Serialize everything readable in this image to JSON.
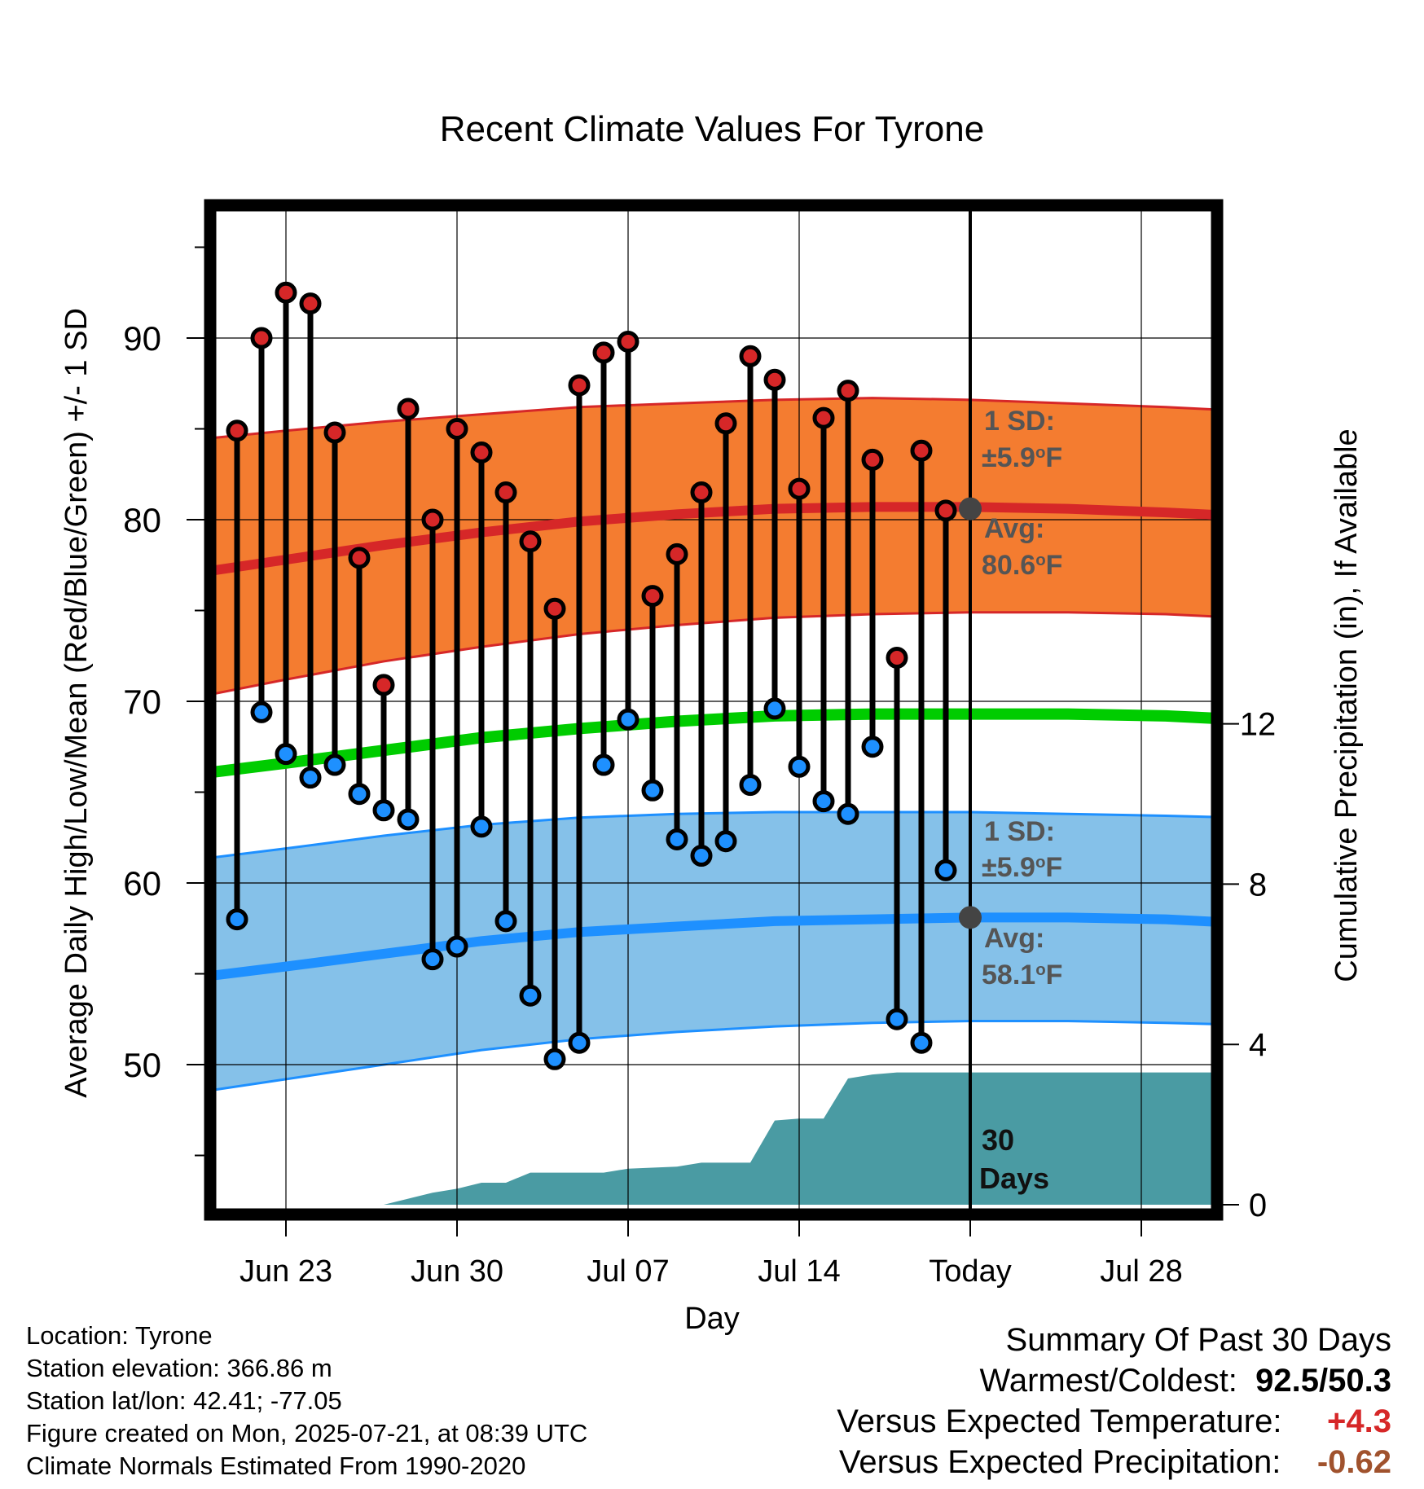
{
  "chart_data": {
    "type": "line",
    "title": "Recent Climate Values For Tyrone",
    "xlabel": "Day",
    "ylabel_left": "Average Daily High/Low/Mean (Red/Blue/Green) +/- 1 SD",
    "ylabel_right": "Cumulative Precipitation (in), If Available",
    "x_tick_labels": [
      "Jun 23",
      "Jun 30",
      "Jul 07",
      "Jul 14",
      "Today",
      "Jul 28"
    ],
    "y_left_ticks": [
      "50",
      "60",
      "70",
      "80",
      "90"
    ],
    "y_right_ticks": [
      "0",
      "4",
      "8",
      "12"
    ],
    "ylim": [
      42.7,
      97.5
    ],
    "y2lim": [
      0,
      24
    ],
    "days": [
      "Jun 21",
      "Jun 22",
      "Jun 23",
      "Jun 24",
      "Jun 25",
      "Jun 26",
      "Jun 27",
      "Jun 28",
      "Jun 29",
      "Jun 30",
      "Jul 01",
      "Jul 02",
      "Jul 03",
      "Jul 04",
      "Jul 05",
      "Jul 06",
      "Jul 07",
      "Jul 08",
      "Jul 09",
      "Jul 10",
      "Jul 11",
      "Jul 12",
      "Jul 13",
      "Jul 14",
      "Jul 15",
      "Jul 16",
      "Jul 17",
      "Jul 18",
      "Jul 19",
      "Jul 20"
    ],
    "daily_high": [
      84.9,
      90.0,
      92.5,
      91.9,
      84.8,
      77.9,
      70.9,
      86.1,
      80.0,
      85.0,
      83.7,
      81.5,
      78.8,
      75.1,
      87.4,
      89.2,
      89.8,
      75.8,
      78.1,
      81.5,
      85.3,
      89.0,
      87.7,
      81.7,
      85.6,
      87.1,
      83.3,
      72.4,
      83.8,
      80.5
    ],
    "daily_low": [
      58.0,
      69.4,
      67.1,
      65.8,
      66.5,
      64.9,
      64.0,
      63.5,
      55.8,
      56.5,
      63.1,
      57.9,
      53.8,
      50.3,
      51.2,
      66.5,
      69.0,
      65.1,
      62.4,
      61.5,
      62.3,
      65.4,
      69.6,
      66.4,
      64.5,
      63.8,
      67.5,
      52.5,
      51.2,
      60.7
    ],
    "normal_days": [
      "Jun 20",
      "Jun 23",
      "Jun 27",
      "Jul 01",
      "Jul 05",
      "Jul 09",
      "Jul 13",
      "Jul 17",
      "Jul 21",
      "Jul 25",
      "Jul 29",
      "Aug 01"
    ],
    "normal_high": [
      77.2,
      77.8,
      78.6,
      79.3,
      79.9,
      80.3,
      80.6,
      80.7,
      80.7,
      80.6,
      80.4,
      80.2
    ],
    "normal_high_upper": [
      84.5,
      84.9,
      85.4,
      85.8,
      86.2,
      86.4,
      86.6,
      86.7,
      86.6,
      86.4,
      86.2,
      86.0
    ],
    "normal_high_lower": [
      70.4,
      71.2,
      72.2,
      73.0,
      73.7,
      74.2,
      74.6,
      74.8,
      74.9,
      74.9,
      74.8,
      74.6
    ],
    "normal_mean": [
      66.1,
      66.6,
      67.3,
      68.0,
      68.5,
      68.9,
      69.2,
      69.3,
      69.3,
      69.3,
      69.2,
      69.0
    ],
    "normal_low": [
      54.9,
      55.4,
      56.1,
      56.8,
      57.3,
      57.6,
      57.9,
      58.0,
      58.1,
      58.1,
      58.0,
      57.8
    ],
    "normal_low_upper": [
      61.4,
      61.9,
      62.6,
      63.2,
      63.6,
      63.8,
      63.9,
      63.9,
      63.9,
      63.8,
      63.7,
      63.6
    ],
    "normal_low_lower": [
      48.6,
      49.2,
      50.0,
      50.8,
      51.4,
      51.8,
      52.1,
      52.3,
      52.4,
      52.4,
      52.3,
      52.2
    ],
    "precip_days": [
      "Jun 20",
      "Jun 27",
      "Jun 28",
      "Jun 29",
      "Jun 30",
      "Jul 01",
      "Jul 02",
      "Jul 03",
      "Jul 06",
      "Jul 07",
      "Jul 09",
      "Jul 10",
      "Jul 12",
      "Jul 13",
      "Jul 14",
      "Jul 15",
      "Jul 16",
      "Jul 17",
      "Jul 18",
      "Jul 19",
      "Jul 20",
      "Aug 01"
    ],
    "cumulative_precip_in": [
      0.0,
      0.0,
      0.15,
      0.3,
      0.4,
      0.55,
      0.55,
      0.8,
      0.8,
      0.9,
      0.95,
      1.05,
      1.05,
      2.1,
      2.15,
      2.15,
      3.15,
      3.25,
      3.3,
      3.3,
      3.3,
      3.3
    ],
    "annotations": {
      "high_sd_label": "1 SD:",
      "high_sd_value": "±5.9",
      "high_avg_label": "Avg:",
      "high_avg_value": "80.6",
      "low_sd_label": "1 SD:",
      "low_sd_value": "±5.9",
      "low_avg_label": "Avg:",
      "low_avg_value": "58.1",
      "degree_symbol": "o",
      "unit": "F",
      "period_number": "30",
      "period_unit": "Days"
    },
    "legend": "none",
    "grid": true,
    "colors": {
      "high_band": "#f47c30",
      "high_line": "#d62728",
      "low_band": "#85c1e9",
      "low_line": "#1e90ff",
      "mean_line": "#00cc00",
      "precip_fill": "#4a9ba3",
      "high_marker": "#d62728",
      "low_marker": "#1e90ff",
      "avg_dot": "#444444",
      "annotation_text": "#555555"
    }
  },
  "info": {
    "location": "Location: Tyrone",
    "elevation": "Station elevation: 366.86 m",
    "latlon": "Station lat/lon: 42.41; -77.05",
    "created": "Figure created on Mon, 2025-07-21, at 08:39 UTC",
    "normals": "Climate Normals Estimated From 1990-2020"
  },
  "summary": {
    "title": "Summary Of Past 30 Days",
    "warmest_label": "Warmest/Coldest:",
    "warmest_value": "92.5",
    "separator": "/",
    "coldest_value": "50.3",
    "temp_label": "Versus Expected Temperature:",
    "temp_value": "+4.3",
    "temp_color": "#d62728",
    "precip_label": "Versus Expected Precipitation:",
    "precip_value": "-0.62",
    "precip_color": "#a0522d"
  }
}
